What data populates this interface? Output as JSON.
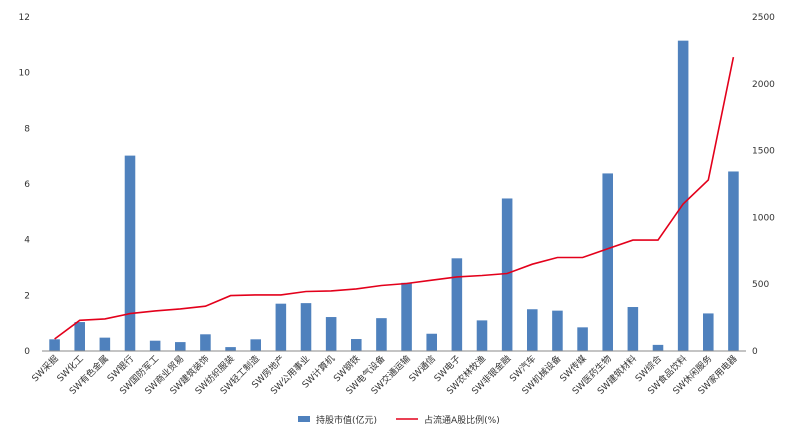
{
  "chart_data": {
    "type": "bar",
    "categories": [
      "SW采掘",
      "SW化工",
      "SW有色金属",
      "SW银行",
      "SW国防军工",
      "SW商业贸易",
      "SW建筑装饰",
      "SW纺织服装",
      "SW轻工制造",
      "SW房地产",
      "SW公用事业",
      "SW计算机",
      "SW钢铁",
      "SW电气设备",
      "SW交通运输",
      "SW通信",
      "SW电子",
      "SW农林牧渔",
      "SW非银金融",
      "SW汽车",
      "SW机械设备",
      "SW传媒",
      "SW医药生物",
      "SW建筑材料",
      "SW综合",
      "SW食品饮料",
      "SW休闲服务",
      "SW家用电器"
    ],
    "series": [
      {
        "name": "持股市值(亿元)",
        "type": "bar",
        "axis": "left",
        "color": "#4f81bd",
        "values": [
          0.42,
          1.04,
          0.48,
          7.02,
          0.37,
          0.32,
          0.6,
          0.14,
          0.42,
          1.7,
          1.72,
          1.22,
          0.43,
          1.18,
          2.45,
          0.62,
          3.33,
          1.1,
          5.48,
          1.5,
          1.45,
          0.85,
          6.38,
          1.58,
          0.22,
          11.15,
          1.35,
          6.45
        ]
      },
      {
        "name": "占流通A股比例(%)",
        "type": "line",
        "axis": "right",
        "color": "#e3001b",
        "values": [
          90,
          230,
          240,
          280,
          300,
          315,
          335,
          415,
          420,
          420,
          445,
          450,
          465,
          490,
          505,
          530,
          555,
          565,
          580,
          650,
          700,
          700,
          765,
          830,
          830,
          1100,
          1280,
          2200
        ]
      }
    ],
    "yleft": {
      "min": 0,
      "max": 12,
      "ticks": [
        "0",
        "2",
        "4",
        "6",
        "8",
        "10",
        "12"
      ]
    },
    "yright": {
      "min": 0,
      "max": 2500,
      "ticks": [
        "0",
        "500",
        "1000",
        "1500",
        "2000",
        "2500"
      ]
    },
    "grid": false,
    "legend": "bottom-center"
  }
}
